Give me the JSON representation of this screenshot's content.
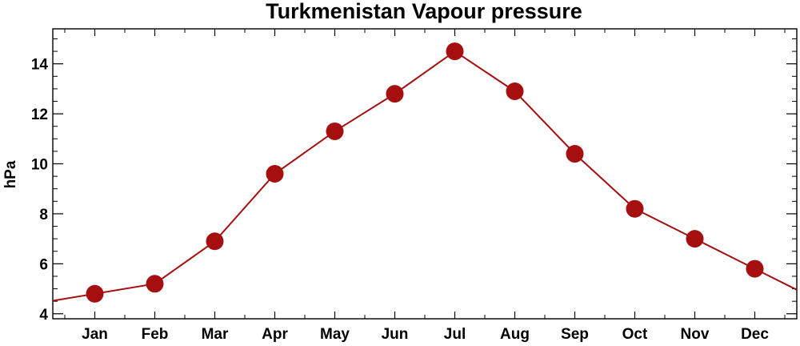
{
  "chart_data": {
    "type": "line",
    "title": "Turkmenistan Vapour pressure",
    "xlabel": "",
    "ylabel": "hPa",
    "categories": [
      "Jan",
      "Feb",
      "Mar",
      "Apr",
      "May",
      "Jun",
      "Jul",
      "Aug",
      "Sep",
      "Oct",
      "Nov",
      "Dec"
    ],
    "series": [
      {
        "values": [
          4.8,
          5.2,
          6.9,
          9.6,
          11.3,
          12.8,
          14.5,
          12.9,
          10.4,
          8.2,
          7.0,
          5.8
        ]
      }
    ],
    "ylim": [
      3.8,
      15.4
    ],
    "yticks": [
      4,
      6,
      8,
      10,
      12,
      14
    ],
    "line_color": "#a50f0f",
    "marker_color": "#a50f0f",
    "grid": false,
    "legend": "none"
  }
}
